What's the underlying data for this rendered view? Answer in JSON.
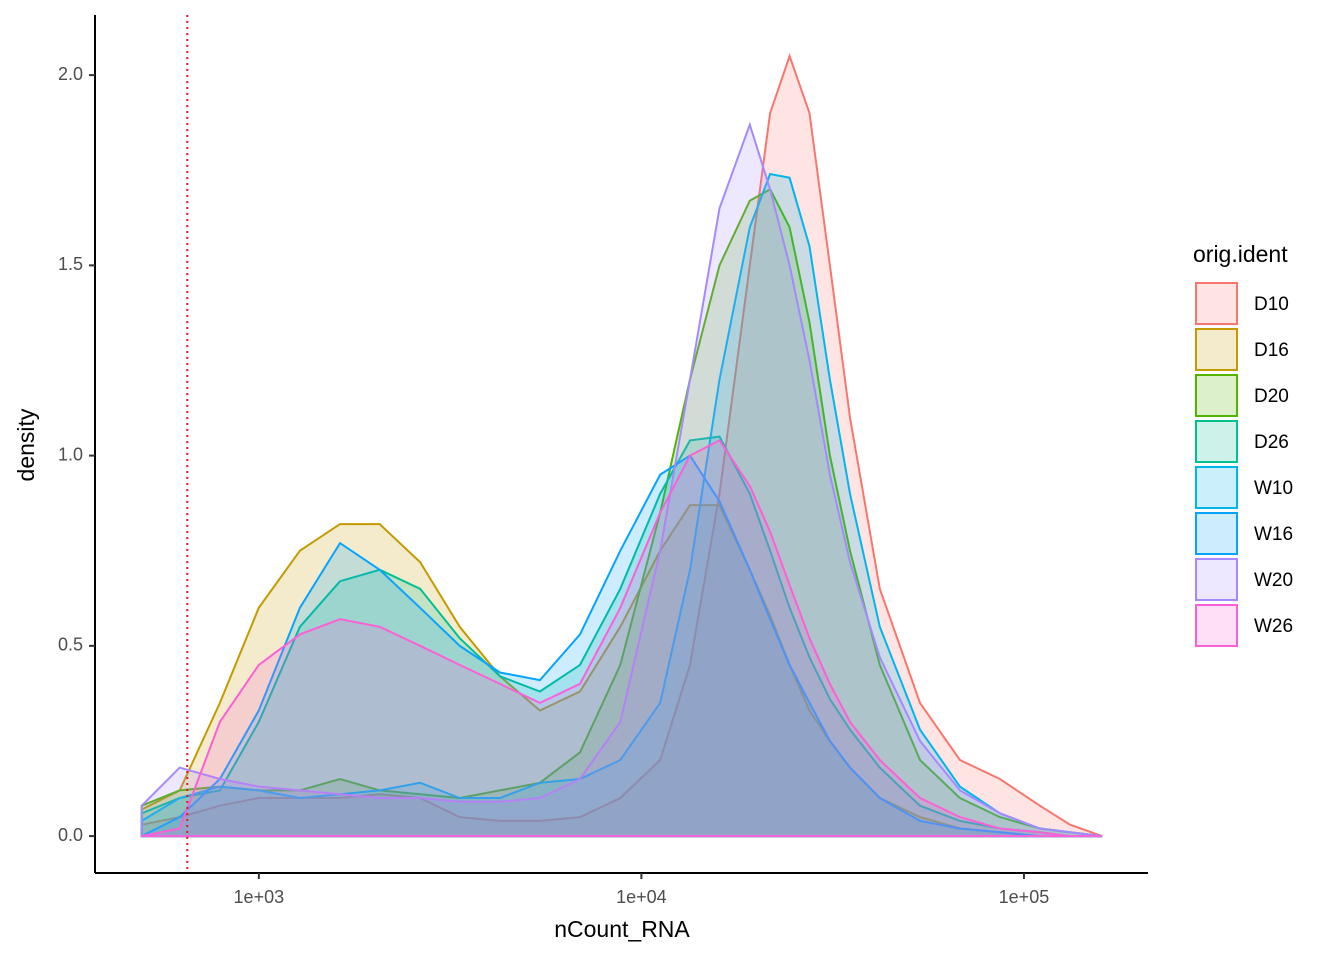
{
  "chart_data": {
    "type": "density",
    "x_label": "nCount_RNA",
    "y_label": "density",
    "legend_title": "orig.ident",
    "xlog": true,
    "grid": false,
    "legend": "right",
    "fill_opacity": 0.2,
    "vline": 650,
    "vline_color": "#e41a1c",
    "xlim": [
      373,
      211000
    ],
    "ylim": [
      -0.097,
      2.158
    ],
    "xticks": [
      {
        "value": 1000,
        "label": "1e+03"
      },
      {
        "value": 10000,
        "label": "1e+04"
      },
      {
        "value": 100000,
        "label": "1e+05"
      }
    ],
    "yticks": [
      {
        "value": 0,
        "label": "0.0"
      },
      0.5,
      {
        "value": 1,
        "label": "1.0"
      },
      1.5,
      {
        "value": 2,
        "label": "2.0"
      }
    ],
    "x": [
      494,
      621,
      791,
      1000,
      1280,
      1630,
      2070,
      2640,
      3350,
      4270,
      5430,
      6910,
      8810,
      11200,
      13400,
      16000,
      19200,
      21700,
      24400,
      27500,
      31100,
      35100,
      42000,
      53500,
      68000,
      86500,
      110000,
      132000,
      160000
    ],
    "series": [
      {
        "name": "D10",
        "color": "#F8766D",
        "values": [
          0.03,
          0.05,
          0.08,
          0.1,
          0.1,
          0.1,
          0.11,
          0.1,
          0.05,
          0.04,
          0.04,
          0.05,
          0.1,
          0.2,
          0.45,
          0.9,
          1.5,
          1.9,
          2.05,
          1.9,
          1.5,
          1.1,
          0.65,
          0.35,
          0.2,
          0.15,
          0.08,
          0.03,
          0
        ]
      },
      {
        "name": "D16",
        "color": "#C49A00",
        "values": [
          0.07,
          0.12,
          0.35,
          0.6,
          0.75,
          0.82,
          0.82,
          0.72,
          0.55,
          0.42,
          0.33,
          0.38,
          0.55,
          0.75,
          0.87,
          0.87,
          0.7,
          0.58,
          0.45,
          0.33,
          0.25,
          0.18,
          0.1,
          0.05,
          0.02,
          0.01,
          0,
          0,
          0
        ]
      },
      {
        "name": "D20",
        "color": "#53B400",
        "values": [
          0.08,
          0.12,
          0.13,
          0.12,
          0.12,
          0.15,
          0.12,
          0.11,
          0.1,
          0.12,
          0.14,
          0.22,
          0.45,
          0.85,
          1.2,
          1.5,
          1.67,
          1.7,
          1.6,
          1.35,
          1.0,
          0.75,
          0.45,
          0.2,
          0.1,
          0.05,
          0.02,
          0.01,
          0
        ]
      },
      {
        "name": "D26",
        "color": "#00C094",
        "values": [
          0.06,
          0.1,
          0.12,
          0.3,
          0.55,
          0.67,
          0.7,
          0.65,
          0.52,
          0.42,
          0.38,
          0.45,
          0.65,
          0.9,
          1.04,
          1.05,
          0.9,
          0.75,
          0.6,
          0.47,
          0.36,
          0.28,
          0.18,
          0.08,
          0.04,
          0.02,
          0.01,
          0,
          0
        ]
      },
      {
        "name": "W10",
        "color": "#00B6EB",
        "values": [
          0.04,
          0.1,
          0.13,
          0.12,
          0.1,
          0.11,
          0.12,
          0.14,
          0.1,
          0.1,
          0.14,
          0.15,
          0.2,
          0.35,
          0.7,
          1.2,
          1.6,
          1.74,
          1.73,
          1.55,
          1.2,
          0.9,
          0.55,
          0.28,
          0.13,
          0.06,
          0.02,
          0.01,
          0
        ]
      },
      {
        "name": "W16",
        "color": "#06A4FF",
        "values": [
          0,
          0.05,
          0.15,
          0.33,
          0.6,
          0.77,
          0.7,
          0.6,
          0.5,
          0.43,
          0.41,
          0.53,
          0.75,
          0.95,
          1.0,
          0.88,
          0.7,
          0.57,
          0.45,
          0.35,
          0.25,
          0.18,
          0.1,
          0.04,
          0.02,
          0.01,
          0,
          0,
          0
        ]
      },
      {
        "name": "W20",
        "color": "#A58AFF",
        "values": [
          0.08,
          0.18,
          0.15,
          0.13,
          0.12,
          0.11,
          0.1,
          0.1,
          0.09,
          0.09,
          0.1,
          0.15,
          0.3,
          0.75,
          1.2,
          1.65,
          1.87,
          1.7,
          1.5,
          1.25,
          0.95,
          0.72,
          0.47,
          0.25,
          0.12,
          0.06,
          0.02,
          0.01,
          0
        ]
      },
      {
        "name": "W26",
        "color": "#FB61D7",
        "values": [
          0,
          0.02,
          0.3,
          0.45,
          0.53,
          0.57,
          0.55,
          0.5,
          0.45,
          0.4,
          0.35,
          0.4,
          0.6,
          0.85,
          1.0,
          1.04,
          0.92,
          0.8,
          0.66,
          0.52,
          0.4,
          0.3,
          0.2,
          0.1,
          0.05,
          0.02,
          0.01,
          0,
          0
        ]
      }
    ]
  }
}
